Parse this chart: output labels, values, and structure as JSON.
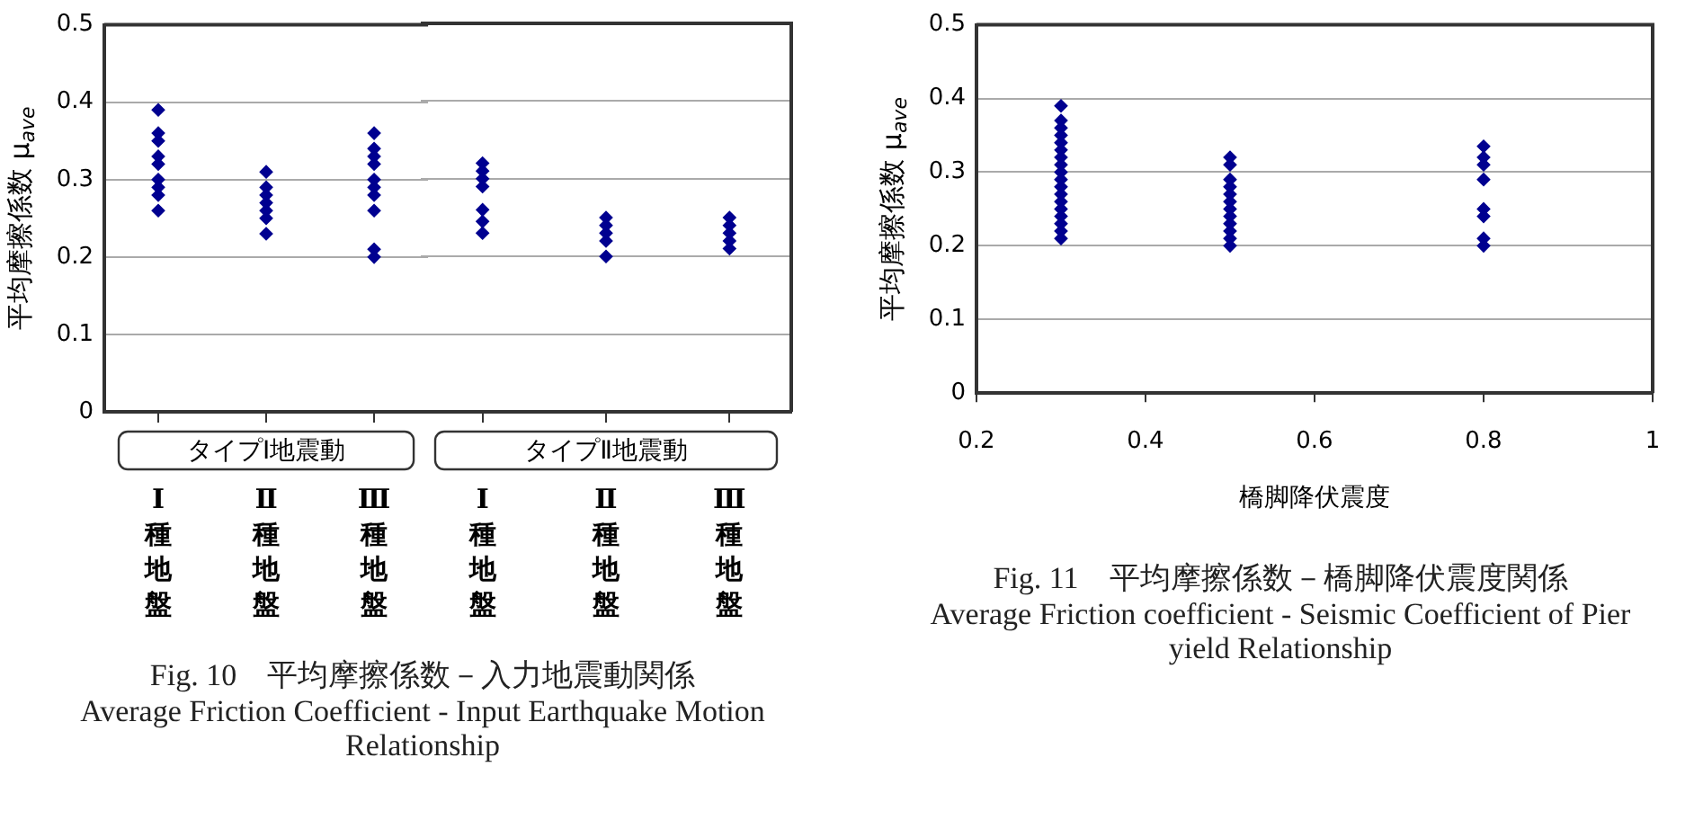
{
  "chart_data": [
    {
      "type": "scatter",
      "title": "Fig. 10　平均摩擦係数－入力地震動関係",
      "subtitle": "Average Friction Coefficient - Input Earthquake Motion Relationship",
      "ylabel": "平均摩擦係数 μ$_{ave}$",
      "xlabel": "タイプⅠ地震動",
      "categories": [
        "Ⅰ種地盤",
        "Ⅱ種地盤",
        "Ⅲ種地盤"
      ],
      "series": [
        {
          "color": "#000090",
          "x": [
            "Ⅰ種地盤",
            "Ⅰ種地盤",
            "Ⅰ種地盤",
            "Ⅰ種地盤",
            "Ⅰ種地盤",
            "Ⅰ種地盤",
            "Ⅰ種地盤",
            "Ⅰ種地盤",
            "Ⅰ種地盤",
            "Ⅱ種地盤",
            "Ⅱ種地盤",
            "Ⅱ種地盤",
            "Ⅱ種地盤",
            "Ⅱ種地盤",
            "Ⅱ種地盤",
            "Ⅱ種地盤",
            "Ⅲ種地盤",
            "Ⅲ種地盤",
            "Ⅲ種地盤",
            "Ⅲ種地盤",
            "Ⅲ種地盤",
            "Ⅲ種地盤",
            "Ⅲ種地盤",
            "Ⅲ種地盤",
            "Ⅲ種地盤",
            "Ⅲ種地盤"
          ],
          "values": [
            0.39,
            0.36,
            0.35,
            0.33,
            0.32,
            0.3,
            0.29,
            0.28,
            0.26,
            0.31,
            0.29,
            0.28,
            0.27,
            0.26,
            0.25,
            0.23,
            0.36,
            0.34,
            0.33,
            0.32,
            0.3,
            0.29,
            0.28,
            0.26,
            0.21,
            0.2
          ]
        }
      ],
      "ylim": [
        0,
        0.5
      ],
      "yticks": [
        0,
        0.1,
        0.2,
        0.3,
        0.4,
        0.5
      ],
      "grid": "y",
      "marker": "diamond"
    },
    {
      "type": "scatter",
      "xlabel": "タイプⅡ地震動",
      "categories": [
        "Ⅰ種地盤",
        "Ⅱ種地盤",
        "Ⅲ種地盤"
      ],
      "series": [
        {
          "color": "#000090",
          "x": [
            "Ⅰ種地盤",
            "Ⅰ種地盤",
            "Ⅰ種地盤",
            "Ⅰ種地盤",
            "Ⅰ種地盤",
            "Ⅰ種地盤",
            "Ⅰ種地盤",
            "Ⅱ種地盤",
            "Ⅱ種地盤",
            "Ⅱ種地盤",
            "Ⅱ種地盤",
            "Ⅱ種地盤",
            "Ⅲ種地盤",
            "Ⅲ種地盤",
            "Ⅲ種地盤",
            "Ⅲ種地盤",
            "Ⅲ種地盤"
          ],
          "values": [
            0.32,
            0.31,
            0.3,
            0.29,
            0.26,
            0.245,
            0.23,
            0.25,
            0.24,
            0.23,
            0.22,
            0.2,
            0.25,
            0.24,
            0.23,
            0.22,
            0.21
          ]
        }
      ],
      "ylim": [
        0,
        0.5
      ],
      "yticks": [
        0,
        0.1,
        0.2,
        0.3,
        0.4,
        0.5
      ],
      "grid": "y",
      "marker": "diamond",
      "tick_labels": "x"
    },
    {
      "type": "scatter",
      "title": "Fig. 11　平均摩擦係数－橋脚降伏震度関係",
      "subtitle": "Average Friction coefficient - Seismic Coefficient of Pier yield Relationship",
      "ylabel": "平均摩擦係数 μ$_{ave}$",
      "xlabel": "橋脚降伏震度",
      "series": [
        {
          "color": "#000090",
          "x": [
            0.3,
            0.3,
            0.3,
            0.3,
            0.3,
            0.3,
            0.3,
            0.3,
            0.3,
            0.3,
            0.3,
            0.3,
            0.3,
            0.3,
            0.3,
            0.3,
            0.3,
            0.3,
            0.5,
            0.5,
            0.5,
            0.5,
            0.5,
            0.5,
            0.5,
            0.5,
            0.5,
            0.5,
            0.5,
            0.5,
            0.8,
            0.8,
            0.8,
            0.8,
            0.8,
            0.8,
            0.8,
            0.8
          ],
          "values": [
            0.39,
            0.37,
            0.36,
            0.35,
            0.34,
            0.33,
            0.32,
            0.31,
            0.3,
            0.29,
            0.28,
            0.27,
            0.26,
            0.25,
            0.24,
            0.23,
            0.22,
            0.21,
            0.32,
            0.31,
            0.29,
            0.28,
            0.27,
            0.26,
            0.25,
            0.24,
            0.23,
            0.22,
            0.21,
            0.2,
            0.335,
            0.32,
            0.31,
            0.29,
            0.25,
            0.24,
            0.21,
            0.2
          ]
        }
      ],
      "xlim": [
        0.2,
        1
      ],
      "xticks": [
        0.2,
        0.4,
        0.6,
        0.8,
        1
      ],
      "ylim": [
        0,
        0.5
      ],
      "yticks": [
        0,
        0.1,
        0.2,
        0.3,
        0.4,
        0.5
      ],
      "grid": "y",
      "marker": "diamond"
    }
  ]
}
